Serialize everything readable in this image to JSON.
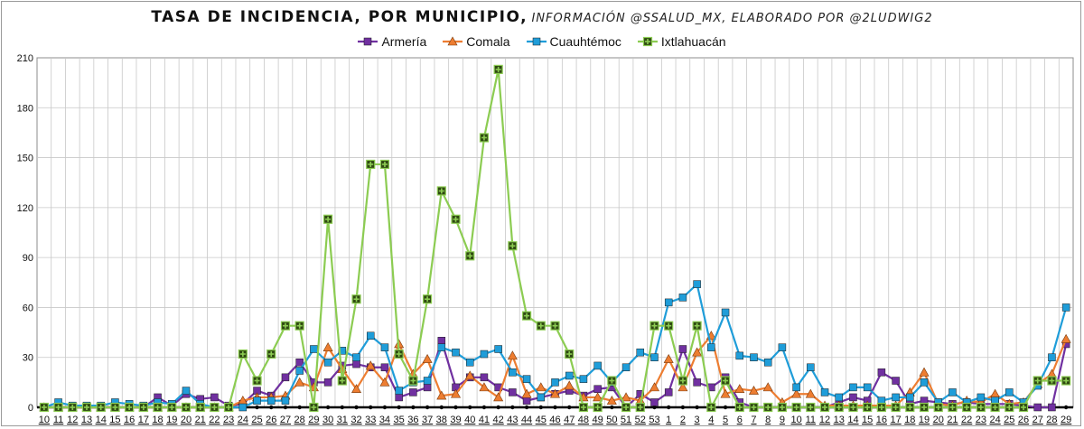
{
  "title": "TASA DE INCIDENCIA, POR MUNICIPIO,",
  "subtitle": "INFORMACIÓN @SSALUD_MX, ELABORADO POR @2LUDWIG2",
  "chart_data": {
    "type": "line",
    "title": "TASA DE INCIDENCIA, POR MUNICIPIO,",
    "subtitle": "INFORMACIÓN @SSALUD_MX, ELABORADO POR @2LUDWIG2",
    "xlabel": "",
    "ylabel": "",
    "ylim": [
      0,
      210
    ],
    "yticks": [
      0,
      30,
      60,
      90,
      120,
      150,
      180,
      210
    ],
    "grid": true,
    "legend_position": "top-center",
    "categories": [
      "10",
      "11",
      "12",
      "13",
      "14",
      "15",
      "16",
      "17",
      "18",
      "19",
      "20",
      "21",
      "22",
      "23",
      "24",
      "25",
      "26",
      "27",
      "28",
      "29",
      "30",
      "31",
      "32",
      "33",
      "34",
      "35",
      "36",
      "37",
      "38",
      "39",
      "40",
      "41",
      "42",
      "43",
      "44",
      "45",
      "46",
      "47",
      "48",
      "49",
      "50",
      "51",
      "52",
      "53",
      "1",
      "2",
      "3",
      "4",
      "5",
      "6",
      "7",
      "8",
      "9",
      "10",
      "11",
      "12",
      "13",
      "14",
      "15",
      "16",
      "17",
      "18",
      "19",
      "20",
      "21",
      "22",
      "23",
      "24",
      "25",
      "26",
      "27",
      "28",
      "29"
    ],
    "series": [
      {
        "name": "Armería",
        "color": "#7030A0",
        "marker": "square",
        "values": [
          0,
          0,
          0,
          0,
          0,
          0,
          0,
          0,
          6,
          1,
          8,
          5,
          6,
          1,
          2,
          10,
          7,
          18,
          27,
          15,
          15,
          25,
          26,
          24,
          24,
          6,
          9,
          12,
          40,
          12,
          18,
          18,
          12,
          9,
          4,
          6,
          8,
          10,
          7,
          11,
          12,
          0,
          8,
          3,
          9,
          35,
          15,
          12,
          18,
          3,
          0,
          0,
          0,
          0,
          0,
          0,
          3,
          6,
          4,
          21,
          16,
          2,
          4,
          3,
          2,
          3,
          2,
          2,
          2,
          1,
          0,
          0,
          38
        ]
      },
      {
        "name": "Comala",
        "color": "#ED7D31",
        "marker": "triangle",
        "values": [
          0,
          0,
          0,
          0,
          0,
          0,
          0,
          0,
          0,
          0,
          0,
          0,
          0,
          0,
          4,
          6,
          6,
          7,
          15,
          12,
          36,
          23,
          11,
          25,
          15,
          38,
          20,
          29,
          7,
          8,
          19,
          12,
          6,
          31,
          8,
          12,
          8,
          13,
          6,
          6,
          4,
          6,
          4,
          12,
          29,
          12,
          33,
          43,
          8,
          11,
          10,
          12,
          3,
          8,
          8,
          1,
          1,
          1,
          1,
          1,
          1,
          9,
          21,
          2,
          1,
          4,
          3,
          8,
          2,
          3,
          14,
          20,
          41
        ]
      },
      {
        "name": "Cuauhtémoc",
        "color": "#1F9DD9",
        "marker": "square",
        "values": [
          0,
          3,
          1,
          1,
          1,
          3,
          2,
          1,
          3,
          2,
          10,
          2,
          0,
          0,
          0,
          4,
          4,
          4,
          22,
          35,
          27,
          34,
          30,
          43,
          36,
          10,
          15,
          16,
          36,
          33,
          27,
          32,
          35,
          21,
          17,
          6,
          15,
          19,
          17,
          25,
          15,
          24,
          33,
          30,
          63,
          66,
          74,
          36,
          57,
          31,
          30,
          27,
          36,
          12,
          24,
          9,
          6,
          12,
          12,
          4,
          6,
          6,
          15,
          3,
          9,
          3,
          6,
          4,
          9,
          3,
          13,
          30,
          60
        ]
      },
      {
        "name": "Ixtlahuacán",
        "color": "#8CCC52",
        "marker": "plus",
        "values": [
          0,
          0,
          0,
          0,
          0,
          0,
          0,
          0,
          0,
          0,
          0,
          0,
          0,
          0,
          32,
          16,
          32,
          49,
          49,
          0,
          113,
          16,
          65,
          146,
          146,
          32,
          16,
          65,
          130,
          113,
          91,
          162,
          203,
          97,
          55,
          49,
          49,
          32,
          0,
          0,
          16,
          0,
          0,
          49,
          49,
          16,
          49,
          0,
          16,
          0,
          0,
          0,
          0,
          0,
          0,
          0,
          0,
          0,
          0,
          0,
          0,
          0,
          0,
          0,
          0,
          0,
          0,
          0,
          0,
          0,
          16,
          16,
          16
        ]
      }
    ]
  }
}
